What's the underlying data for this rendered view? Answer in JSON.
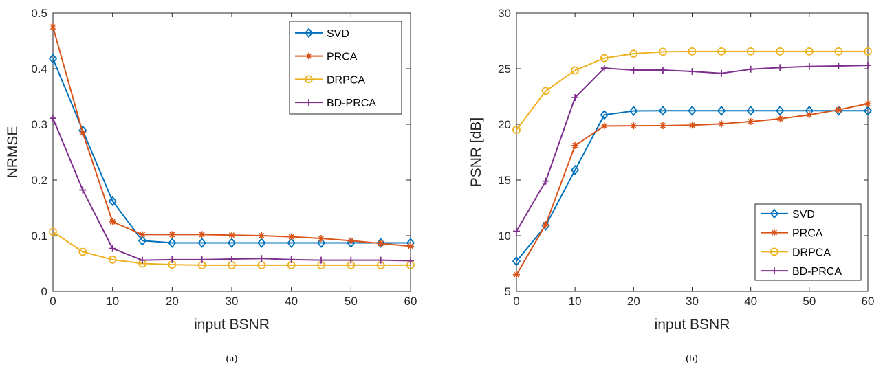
{
  "chart_data": [
    {
      "type": "line",
      "caption": "(a)",
      "xlabel": "input BSNR",
      "ylabel": "NRMSE",
      "xlim": [
        0,
        60
      ],
      "ylim": [
        0,
        0.5
      ],
      "xticks": [
        0,
        10,
        20,
        30,
        40,
        50,
        60
      ],
      "yticks": [
        0,
        0.1,
        0.2,
        0.3,
        0.4,
        0.5
      ],
      "ytick_labels": [
        "0",
        "0.1",
        "0.2",
        "0.3",
        "0.4",
        "0.5"
      ],
      "legend_position": "top-right",
      "x": [
        0,
        5,
        10,
        15,
        20,
        25,
        30,
        35,
        40,
        45,
        50,
        55,
        60
      ],
      "series": [
        {
          "name": "SVD",
          "color": "#0072BD",
          "marker": "diamond",
          "values": [
            0.418,
            0.289,
            0.162,
            0.091,
            0.087,
            0.087,
            0.087,
            0.087,
            0.087,
            0.087,
            0.087,
            0.087,
            0.087
          ]
        },
        {
          "name": "PRCA",
          "color": "#D95319",
          "marker": "asterisk",
          "values": [
            0.475,
            0.285,
            0.125,
            0.102,
            0.102,
            0.102,
            0.101,
            0.1,
            0.098,
            0.095,
            0.091,
            0.086,
            0.081
          ]
        },
        {
          "name": "DRPCA",
          "color": "#EDB120",
          "marker": "circle",
          "values": [
            0.107,
            0.071,
            0.057,
            0.05,
            0.048,
            0.047,
            0.047,
            0.047,
            0.047,
            0.047,
            0.047,
            0.047,
            0.047
          ]
        },
        {
          "name": "BD-PRCA",
          "color": "#7E2F8E",
          "marker": "plus",
          "values": [
            0.311,
            0.182,
            0.077,
            0.056,
            0.057,
            0.057,
            0.058,
            0.059,
            0.057,
            0.056,
            0.056,
            0.056,
            0.055
          ]
        }
      ]
    },
    {
      "type": "line",
      "caption": "(b)",
      "xlabel": "input BSNR",
      "ylabel": "PSNR [dB]",
      "xlim": [
        0,
        60
      ],
      "ylim": [
        5,
        30
      ],
      "xticks": [
        0,
        10,
        20,
        30,
        40,
        50,
        60
      ],
      "yticks": [
        5,
        10,
        15,
        20,
        25,
        30
      ],
      "ytick_labels": [
        "5",
        "10",
        "15",
        "20",
        "25",
        "30"
      ],
      "legend_position": "bottom-right",
      "x": [
        0,
        5,
        10,
        15,
        20,
        25,
        30,
        35,
        40,
        45,
        50,
        55,
        60
      ],
      "series": [
        {
          "name": "SVD",
          "color": "#0072BD",
          "marker": "diamond",
          "values": [
            7.7,
            10.9,
            15.9,
            20.85,
            21.2,
            21.22,
            21.22,
            21.22,
            21.22,
            21.22,
            21.22,
            21.22,
            21.22
          ]
        },
        {
          "name": "PRCA",
          "color": "#D95319",
          "marker": "asterisk",
          "values": [
            6.5,
            11.0,
            18.1,
            19.85,
            19.87,
            19.88,
            19.92,
            20.05,
            20.25,
            20.5,
            20.85,
            21.3,
            21.85
          ]
        },
        {
          "name": "DRPCA",
          "color": "#EDB120",
          "marker": "circle",
          "values": [
            19.5,
            23.0,
            24.85,
            25.95,
            26.35,
            26.52,
            26.55,
            26.55,
            26.55,
            26.55,
            26.55,
            26.55,
            26.55
          ]
        },
        {
          "name": "BD-PRCA",
          "color": "#7E2F8E",
          "marker": "plus",
          "values": [
            10.4,
            14.9,
            22.4,
            25.05,
            24.88,
            24.88,
            24.75,
            24.58,
            24.95,
            25.1,
            25.2,
            25.25,
            25.3
          ]
        }
      ]
    }
  ]
}
